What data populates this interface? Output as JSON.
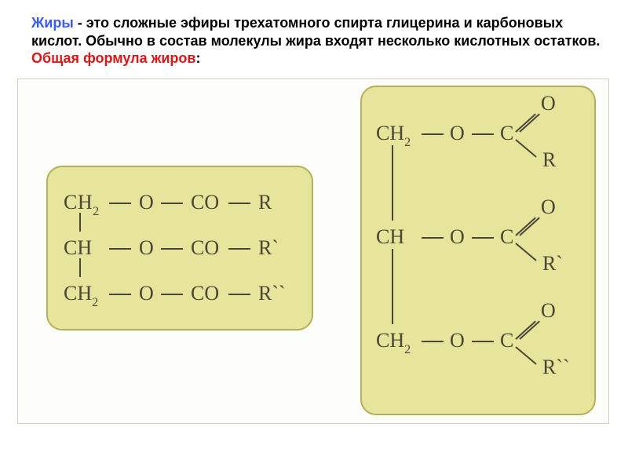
{
  "description": {
    "term": "Жиры",
    "body1": " - это сложные эфиры трехатомного спирта глицерина и карбоновых кислот. Обычно в состав молекулы жира входят несколько кислотных остатков. ",
    "formula_label": "Общая формула жиров",
    "colon": ":"
  },
  "diagram": {
    "colors": {
      "panel_fill": "#e7e49b",
      "panel_border": "#b2b15a",
      "area_bg": "#fdfdf9",
      "area_border": "#cfcfcf",
      "ink": "#4a4738",
      "term_color": "#3c59ff",
      "label_color": "#e01414"
    },
    "left_formula": {
      "rows": [
        {
          "carbon": "CH2",
          "chain": [
            "O",
            "CO",
            "R"
          ]
        },
        {
          "carbon": "CH",
          "chain": [
            "O",
            "CO",
            "R`"
          ]
        },
        {
          "carbon": "CH2",
          "chain": [
            "O",
            "CO",
            "R``"
          ]
        }
      ]
    },
    "right_formula": {
      "rows": [
        {
          "carbon": "CH2",
          "o": "O",
          "c": "C",
          "od": "O",
          "r": "R"
        },
        {
          "carbon": "CH",
          "o": "O",
          "c": "C",
          "od": "O",
          "r": "R`"
        },
        {
          "carbon": "CH2",
          "o": "O",
          "c": "C",
          "od": "O",
          "r": "R``"
        }
      ]
    },
    "font": {
      "family": "Georgia, Times New Roman, serif",
      "base_size_pt": 20,
      "sub_ratio": 0.62,
      "weight": "normal"
    }
  }
}
